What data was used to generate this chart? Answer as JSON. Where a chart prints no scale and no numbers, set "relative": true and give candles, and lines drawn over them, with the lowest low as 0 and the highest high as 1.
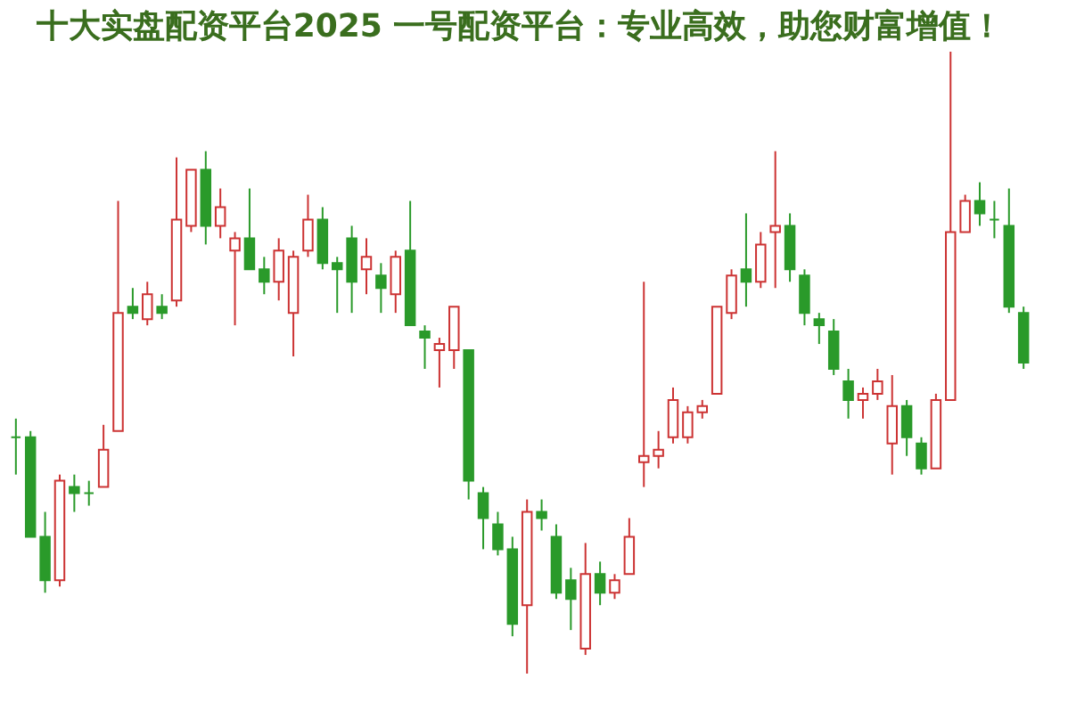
{
  "chart_data": {
    "type": "candlestick",
    "title": "十大实盘配资平台2025 一号配资平台：专业高效，助您财富增值！",
    "relative": true,
    "categories": [
      null,
      null,
      null,
      null,
      null,
      null,
      null,
      null,
      null,
      null,
      null,
      null,
      null,
      null,
      null,
      null,
      null,
      null,
      null,
      null,
      null,
      null,
      null,
      null,
      null,
      null,
      null,
      null,
      null,
      null,
      null,
      null,
      null,
      null,
      null,
      null,
      null,
      null,
      null,
      null,
      null,
      null,
      null,
      null,
      null,
      null,
      null,
      null,
      null,
      null,
      null,
      null,
      null,
      null,
      null,
      null,
      null,
      null,
      null,
      null,
      null,
      null,
      null,
      null,
      null,
      null,
      null,
      null,
      null,
      null
    ],
    "ohlc": [
      [
        0.38,
        0.41,
        0.32,
        0.38
      ],
      [
        0.38,
        0.39,
        0.22,
        0.22
      ],
      [
        0.22,
        0.26,
        0.13,
        0.15
      ],
      [
        0.15,
        0.32,
        0.14,
        0.31
      ],
      [
        0.3,
        0.32,
        0.26,
        0.29
      ],
      [
        0.29,
        0.31,
        0.27,
        0.29
      ],
      [
        0.3,
        0.4,
        0.3,
        0.36
      ],
      [
        0.39,
        0.76,
        0.39,
        0.58
      ],
      [
        0.59,
        0.62,
        0.57,
        0.58
      ],
      [
        0.57,
        0.63,
        0.56,
        0.61
      ],
      [
        0.59,
        0.61,
        0.57,
        0.58
      ],
      [
        0.6,
        0.83,
        0.59,
        0.73
      ],
      [
        0.72,
        0.81,
        0.71,
        0.81
      ],
      [
        0.81,
        0.84,
        0.69,
        0.72
      ],
      [
        0.72,
        0.78,
        0.7,
        0.75
      ],
      [
        0.68,
        0.71,
        0.56,
        0.7
      ],
      [
        0.7,
        0.78,
        0.65,
        0.65
      ],
      [
        0.65,
        0.67,
        0.61,
        0.63
      ],
      [
        0.63,
        0.7,
        0.6,
        0.68
      ],
      [
        0.58,
        0.68,
        0.51,
        0.67
      ],
      [
        0.68,
        0.77,
        0.67,
        0.73
      ],
      [
        0.73,
        0.75,
        0.65,
        0.66
      ],
      [
        0.66,
        0.67,
        0.58,
        0.65
      ],
      [
        0.7,
        0.72,
        0.58,
        0.63
      ],
      [
        0.65,
        0.7,
        0.61,
        0.67
      ],
      [
        0.64,
        0.66,
        0.58,
        0.62
      ],
      [
        0.61,
        0.68,
        0.58,
        0.67
      ],
      [
        0.68,
        0.76,
        0.56,
        0.56
      ],
      [
        0.55,
        0.56,
        0.49,
        0.54
      ],
      [
        0.52,
        0.54,
        0.46,
        0.53
      ],
      [
        0.52,
        0.59,
        0.49,
        0.59
      ],
      [
        0.52,
        0.52,
        0.28,
        0.31
      ],
      [
        0.29,
        0.3,
        0.2,
        0.25
      ],
      [
        0.24,
        0.26,
        0.19,
        0.2
      ],
      [
        0.2,
        0.22,
        0.06,
        0.08
      ],
      [
        0.11,
        0.28,
        0,
        0.26
      ],
      [
        0.26,
        0.28,
        0.23,
        0.25
      ],
      [
        0.22,
        0.24,
        0.12,
        0.13
      ],
      [
        0.15,
        0.17,
        0.07,
        0.12
      ],
      [
        0.04,
        0.21,
        0.03,
        0.16
      ],
      [
        0.16,
        0.18,
        0.11,
        0.13
      ],
      [
        0.13,
        0.16,
        0.12,
        0.15
      ],
      [
        0.16,
        0.25,
        0.16,
        0.22
      ],
      [
        0.34,
        0.63,
        0.3,
        0.35
      ],
      [
        0.35,
        0.39,
        0.33,
        0.36
      ],
      [
        0.38,
        0.46,
        0.37,
        0.44
      ],
      [
        0.38,
        0.43,
        0.37,
        0.42
      ],
      [
        0.42,
        0.44,
        0.41,
        0.43
      ],
      [
        0.45,
        0.59,
        0.45,
        0.59
      ],
      [
        0.58,
        0.65,
        0.57,
        0.64
      ],
      [
        0.65,
        0.74,
        0.59,
        0.63
      ],
      [
        0.63,
        0.71,
        0.62,
        0.69
      ],
      [
        0.71,
        0.84,
        0.62,
        0.72
      ],
      [
        0.72,
        0.74,
        0.63,
        0.65
      ],
      [
        0.64,
        0.65,
        0.56,
        0.58
      ],
      [
        0.57,
        0.58,
        0.53,
        0.56
      ],
      [
        0.55,
        0.57,
        0.48,
        0.49
      ],
      [
        0.47,
        0.49,
        0.41,
        0.44
      ],
      [
        0.44,
        0.46,
        0.41,
        0.45
      ],
      [
        0.45,
        0.49,
        0.44,
        0.47
      ],
      [
        0.37,
        0.48,
        0.32,
        0.43
      ],
      [
        0.43,
        0.44,
        0.35,
        0.38
      ],
      [
        0.37,
        0.38,
        0.32,
        0.33
      ],
      [
        0.33,
        0.45,
        0.33,
        0.44
      ],
      [
        0.44,
        1,
        0.44,
        0.71
      ],
      [
        0.71,
        0.77,
        0.71,
        0.76
      ],
      [
        0.76,
        0.79,
        0.72,
        0.74
      ],
      [
        0.73,
        0.76,
        0.7,
        0.73
      ],
      [
        0.72,
        0.78,
        0.58,
        0.59
      ],
      [
        0.58,
        0.59,
        0.49,
        0.5
      ]
    ],
    "colors": [
      "#2a9a2a",
      "#2a9a2a",
      "#2a9a2a",
      "#cc3333",
      "#2a9a2a",
      "#2a9a2a",
      "#cc3333",
      "#cc3333",
      "#2a9a2a",
      "#cc3333",
      "#2a9a2a",
      "#cc3333",
      "#cc3333",
      "#2a9a2a",
      "#cc3333",
      "#cc3333",
      "#2a9a2a",
      "#2a9a2a",
      "#cc3333",
      "#cc3333",
      "#cc3333",
      "#2a9a2a",
      "#2a9a2a",
      "#2a9a2a",
      "#cc3333",
      "#2a9a2a",
      "#cc3333",
      "#2a9a2a",
      "#2a9a2a",
      "#cc3333",
      "#cc3333",
      "#2a9a2a",
      "#2a9a2a",
      "#2a9a2a",
      "#2a9a2a",
      "#cc3333",
      "#2a9a2a",
      "#2a9a2a",
      "#2a9a2a",
      "#cc3333",
      "#2a9a2a",
      "#cc3333",
      "#cc3333",
      "#cc3333",
      "#cc3333",
      "#cc3333",
      "#cc3333",
      "#cc3333",
      "#cc3333",
      "#cc3333",
      "#2a9a2a",
      "#cc3333",
      "#cc3333",
      "#2a9a2a",
      "#2a9a2a",
      "#2a9a2a",
      "#2a9a2a",
      "#2a9a2a",
      "#cc3333",
      "#cc3333",
      "#cc3333",
      "#2a9a2a",
      "#2a9a2a",
      "#cc3333",
      "#cc3333",
      "#cc3333",
      "#2a9a2a",
      "#2a9a2a",
      "#2a9a2a",
      "#2a9a2a"
    ]
  }
}
